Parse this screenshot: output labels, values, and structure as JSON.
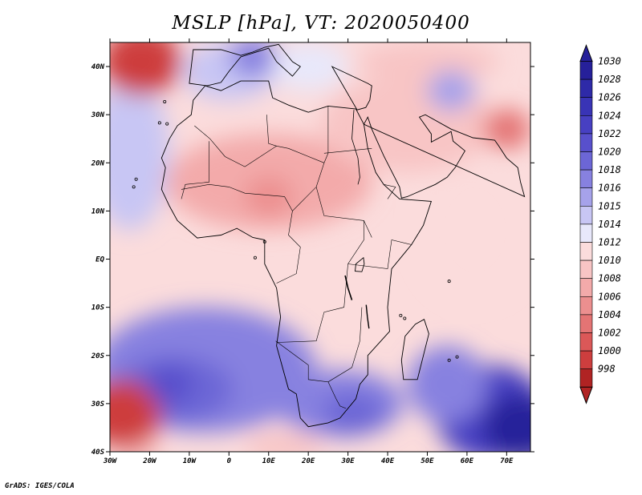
{
  "map": {
    "title": "MSLP [hPa], VT: 2020050400",
    "variable": "Mean sea level pressure",
    "units": "hPa",
    "valid_time": "2020050400",
    "region": "Africa",
    "lon_range": [
      -30,
      76
    ],
    "lat_range": [
      -40,
      45
    ],
    "lon_ticks": [
      {
        "value": -30,
        "label": "30W"
      },
      {
        "value": -20,
        "label": "20W"
      },
      {
        "value": -10,
        "label": "10W"
      },
      {
        "value": 0,
        "label": "0"
      },
      {
        "value": 10,
        "label": "10E"
      },
      {
        "value": 20,
        "label": "20E"
      },
      {
        "value": 30,
        "label": "30E"
      },
      {
        "value": 40,
        "label": "40E"
      },
      {
        "value": 50,
        "label": "50E"
      },
      {
        "value": 60,
        "label": "60E"
      },
      {
        "value": 70,
        "label": "70E"
      }
    ],
    "lat_ticks": [
      {
        "value": 40,
        "label": "40N"
      },
      {
        "value": 30,
        "label": "30N"
      },
      {
        "value": 20,
        "label": "20N"
      },
      {
        "value": 10,
        "label": "10N"
      },
      {
        "value": 0,
        "label": "EQ"
      },
      {
        "value": -10,
        "label": "10S"
      },
      {
        "value": -20,
        "label": "20S"
      },
      {
        "value": -30,
        "label": "30S"
      },
      {
        "value": -40,
        "label": "40S"
      }
    ],
    "pressure_features": [
      {
        "name": "Azores-area low",
        "lon": -22,
        "lat": 41,
        "value": 999
      },
      {
        "name": "South Atlantic low",
        "lon": -27,
        "lat": -32,
        "value": 1000
      },
      {
        "name": "Arabian heat low",
        "lon": 70,
        "lat": 27,
        "value": 1003
      },
      {
        "name": "Sahel heat trough",
        "lon": 10,
        "lat": 13,
        "value": 1006
      },
      {
        "name": "South Atlantic high",
        "lon": -15,
        "lat": -26,
        "value": 1021
      },
      {
        "name": "Southern Africa high",
        "lon": 30,
        "lat": -32,
        "value": 1019
      },
      {
        "name": "Indian Ocean high",
        "lon": 74,
        "lat": -35,
        "value": 1030
      },
      {
        "name": "Mediterranean ridge",
        "lon": 6,
        "lat": 42,
        "value": 1017
      },
      {
        "name": "Iran highland ridge",
        "lon": 56,
        "lat": 35,
        "value": 1016
      }
    ]
  },
  "legend": {
    "levels": [
      {
        "label": "1030",
        "color": "#26209a"
      },
      {
        "label": "1028",
        "color": "#2e2aa8"
      },
      {
        "label": "1026",
        "color": "#3934b6"
      },
      {
        "label": "1024",
        "color": "#4740c2"
      },
      {
        "label": "1022",
        "color": "#5850cc"
      },
      {
        "label": "1020",
        "color": "#6c66d6"
      },
      {
        "label": "1018",
        "color": "#8781e0"
      },
      {
        "label": "1016",
        "color": "#a6a2ea"
      },
      {
        "label": "1015",
        "color": "#c8c6f4"
      },
      {
        "label": "1014",
        "color": "#e8e8fb"
      },
      {
        "label": "1012",
        "color": "#fbdcdc"
      },
      {
        "label": "1010",
        "color": "#f8c5c5"
      },
      {
        "label": "1008",
        "color": "#f3aaaa"
      },
      {
        "label": "1006",
        "color": "#ec8f8f"
      },
      {
        "label": "1004",
        "color": "#e47474"
      },
      {
        "label": "1002",
        "color": "#db5858"
      },
      {
        "label": "1000",
        "color": "#cd3e3e"
      },
      {
        "label": "998",
        "color": "#b02323"
      }
    ]
  },
  "footer": {
    "credit": "GrADS: IGES/COLA"
  }
}
